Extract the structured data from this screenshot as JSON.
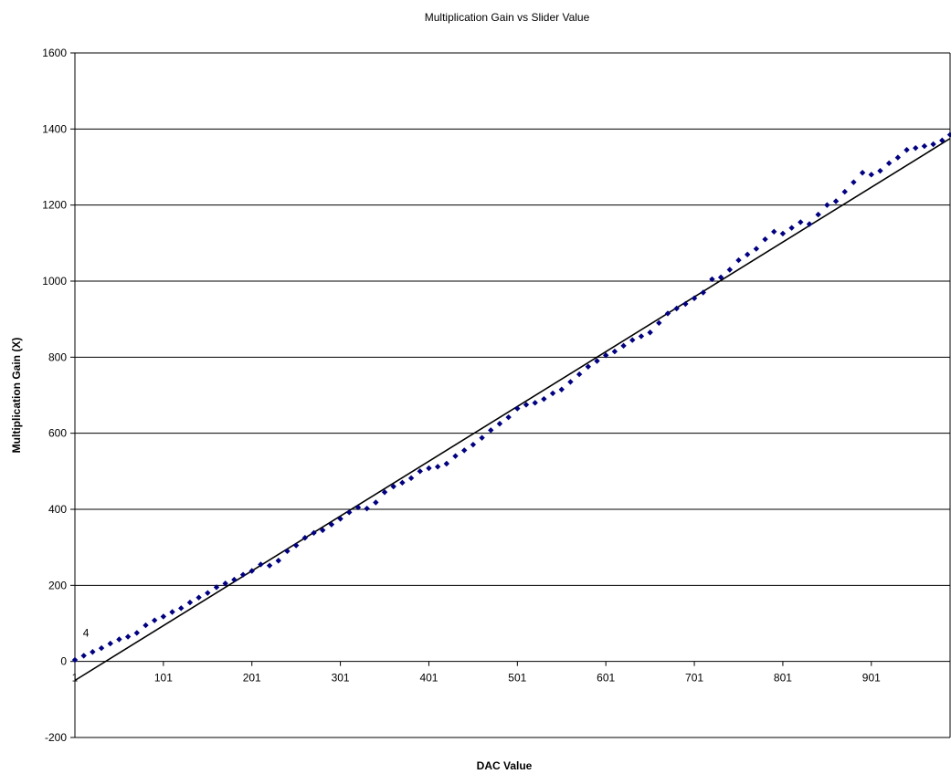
{
  "chart_data": {
    "type": "scatter",
    "title": "Multiplication Gain vs Slider Value",
    "xlabel": "DAC Value",
    "ylabel": "Multiplication Gain (X)",
    "xlim": [
      1,
      990
    ],
    "ylim": [
      -200,
      1600
    ],
    "y_ticks": [
      -200,
      0,
      200,
      400,
      600,
      800,
      1000,
      1200,
      1400,
      1600
    ],
    "x_ticks": [
      1,
      101,
      201,
      301,
      401,
      501,
      601,
      701,
      801,
      901
    ],
    "grid": "horizontal",
    "legend": "none",
    "marker_color": "#000080",
    "trendline": {
      "x": [
        1,
        990
      ],
      "y": [
        -50,
        1375
      ],
      "color": "#000000"
    },
    "annotations": [
      {
        "text": "4",
        "x": 10,
        "y": 65
      }
    ],
    "series": [
      {
        "x": [
          1,
          11,
          21,
          31,
          41,
          51,
          61,
          71,
          81,
          91,
          101,
          111,
          121,
          131,
          141,
          151,
          161,
          171,
          181,
          191,
          201,
          211,
          221,
          231,
          241,
          251,
          261,
          271,
          281,
          291,
          301,
          311,
          321,
          331,
          341,
          351,
          361,
          371,
          381,
          391,
          401,
          411,
          421,
          431,
          441,
          451,
          461,
          471,
          481,
          491,
          501,
          511,
          521,
          531,
          541,
          551,
          561,
          571,
          581,
          591,
          601,
          611,
          621,
          631,
          641,
          651,
          661,
          671,
          681,
          691,
          701,
          711,
          721,
          731,
          741,
          751,
          761,
          771,
          781,
          791,
          801,
          811,
          821,
          831,
          841,
          851,
          861,
          871,
          881,
          891,
          901,
          911,
          921,
          931,
          941,
          951,
          961,
          971,
          981,
          990
        ],
        "y": [
          4,
          15,
          25,
          35,
          47,
          58,
          65,
          75,
          95,
          108,
          118,
          130,
          140,
          155,
          168,
          180,
          195,
          205,
          215,
          228,
          238,
          255,
          252,
          265,
          290,
          305,
          325,
          338,
          345,
          360,
          375,
          392,
          405,
          402,
          418,
          445,
          460,
          470,
          482,
          500,
          508,
          512,
          520,
          540,
          555,
          570,
          588,
          608,
          625,
          642,
          665,
          675,
          680,
          690,
          705,
          715,
          735,
          755,
          775,
          790,
          805,
          815,
          830,
          845,
          855,
          865,
          890,
          915,
          928,
          940,
          955,
          970,
          1005,
          1010,
          1030,
          1055,
          1070,
          1085,
          1110,
          1130,
          1125,
          1140,
          1155,
          1150,
          1175,
          1200,
          1210,
          1235,
          1260,
          1285,
          1280,
          1290,
          1310,
          1325,
          1345,
          1350,
          1355,
          1360,
          1370,
          1385
        ]
      }
    ]
  }
}
